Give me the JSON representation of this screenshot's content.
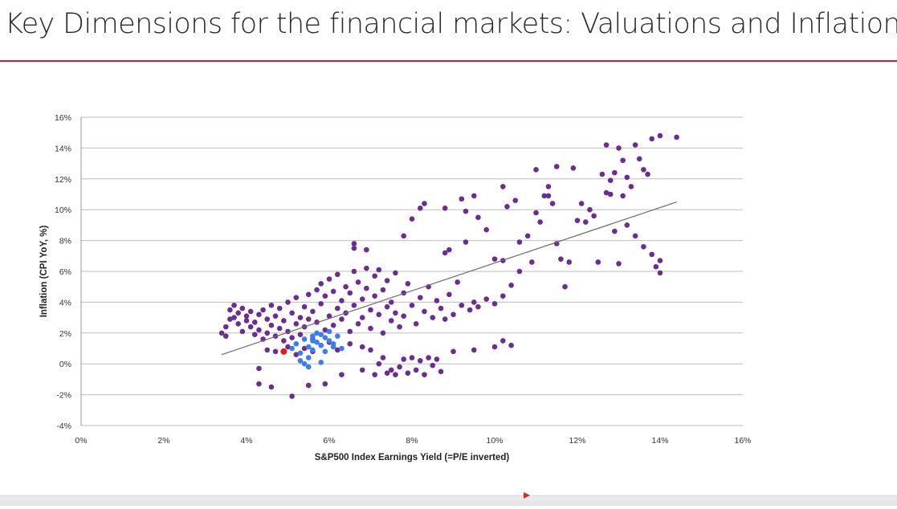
{
  "slide": {
    "title": "Key Dimensions for the financial markets: Valuations and Inflation"
  },
  "colors": {
    "accent_rule": "#c8221c",
    "historical": "#6b2d8f",
    "recent": "#3d7ee8",
    "current": "#e01b1b",
    "trendline": "#6b6b6b",
    "grid": "#bdbdbd"
  },
  "chart_data": {
    "type": "scatter",
    "title": "",
    "xlabel": "S&P500 Index Earnings Yield (=P/E inverted)",
    "ylabel": "Inflation (CPI YoY, %)",
    "xlim": [
      0,
      16
    ],
    "ylim": [
      -4,
      16
    ],
    "x_ticks": [
      "0%",
      "2%",
      "4%",
      "6%",
      "8%",
      "10%",
      "12%",
      "14%",
      "16%"
    ],
    "y_ticks": [
      "16%",
      "14%",
      "12%",
      "10%",
      "8%",
      "6%",
      "4%",
      "2%",
      "0%",
      "-2%",
      "-4%"
    ],
    "grid": "horizontal",
    "legend": "none",
    "trendline": {
      "x": [
        3.4,
        14.4
      ],
      "y": [
        0.6,
        10.5
      ]
    },
    "series": [
      {
        "color": "#6b2d8f",
        "points": [
          [
            3.4,
            2.0
          ],
          [
            3.5,
            1.8
          ],
          [
            3.5,
            2.4
          ],
          [
            3.6,
            2.9
          ],
          [
            3.6,
            3.5
          ],
          [
            3.7,
            3.0
          ],
          [
            3.7,
            3.8
          ],
          [
            3.8,
            2.6
          ],
          [
            3.8,
            3.3
          ],
          [
            3.9,
            2.1
          ],
          [
            3.9,
            3.6
          ],
          [
            4.0,
            2.8
          ],
          [
            4.0,
            3.1
          ],
          [
            4.1,
            2.4
          ],
          [
            4.1,
            3.4
          ],
          [
            4.2,
            1.9
          ],
          [
            4.2,
            2.7
          ],
          [
            4.3,
            3.2
          ],
          [
            4.3,
            2.2
          ],
          [
            4.4,
            3.5
          ],
          [
            4.4,
            1.6
          ],
          [
            4.5,
            2.9
          ],
          [
            4.5,
            2.0
          ],
          [
            4.6,
            3.8
          ],
          [
            4.6,
            2.5
          ],
          [
            4.7,
            1.8
          ],
          [
            4.7,
            3.1
          ],
          [
            4.8,
            2.3
          ],
          [
            4.8,
            3.6
          ],
          [
            4.9,
            1.5
          ],
          [
            4.9,
            2.8
          ],
          [
            5.0,
            4.0
          ],
          [
            5.0,
            2.1
          ],
          [
            5.1,
            3.3
          ],
          [
            5.1,
            1.7
          ],
          [
            5.2,
            2.6
          ],
          [
            5.2,
            4.3
          ],
          [
            5.3,
            3.0
          ],
          [
            5.3,
            1.9
          ],
          [
            5.4,
            3.7
          ],
          [
            5.4,
            2.4
          ],
          [
            5.5,
            4.5
          ],
          [
            5.5,
            2.9
          ],
          [
            5.6,
            3.4
          ],
          [
            5.6,
            1.6
          ],
          [
            5.7,
            4.8
          ],
          [
            5.7,
            2.7
          ],
          [
            5.8,
            5.2
          ],
          [
            5.8,
            3.9
          ],
          [
            5.9,
            2.2
          ],
          [
            5.9,
            4.4
          ],
          [
            6.0,
            5.5
          ],
          [
            6.0,
            3.1
          ],
          [
            6.1,
            2.5
          ],
          [
            6.1,
            4.7
          ],
          [
            6.2,
            3.6
          ],
          [
            6.2,
            5.8
          ],
          [
            6.3,
            2.9
          ],
          [
            6.3,
            4.1
          ],
          [
            6.4,
            3.3
          ],
          [
            6.4,
            5.0
          ],
          [
            6.5,
            2.1
          ],
          [
            6.5,
            4.6
          ],
          [
            6.6,
            6.0
          ],
          [
            6.6,
            3.8
          ],
          [
            6.7,
            2.6
          ],
          [
            6.7,
            5.3
          ],
          [
            6.8,
            4.2
          ],
          [
            6.8,
            3.0
          ],
          [
            6.9,
            6.2
          ],
          [
            6.9,
            4.9
          ],
          [
            7.0,
            3.5
          ],
          [
            7.0,
            2.3
          ],
          [
            7.1,
            5.7
          ],
          [
            7.1,
            4.4
          ],
          [
            7.2,
            3.2
          ],
          [
            7.2,
            6.1
          ],
          [
            7.3,
            2.0
          ],
          [
            7.3,
            4.8
          ],
          [
            7.4,
            3.7
          ],
          [
            7.4,
            5.4
          ],
          [
            7.5,
            2.8
          ],
          [
            7.5,
            4.0
          ],
          [
            7.6,
            3.3
          ],
          [
            7.6,
            5.9
          ],
          [
            7.7,
            2.4
          ],
          [
            7.8,
            4.6
          ],
          [
            7.8,
            3.1
          ],
          [
            7.9,
            5.2
          ],
          [
            8.0,
            3.8
          ],
          [
            8.1,
            2.6
          ],
          [
            8.2,
            4.3
          ],
          [
            8.3,
            3.4
          ],
          [
            8.4,
            5.0
          ],
          [
            8.5,
            3.0
          ],
          [
            8.6,
            4.1
          ],
          [
            8.7,
            3.6
          ],
          [
            8.8,
            2.9
          ],
          [
            8.9,
            4.5
          ],
          [
            9.0,
            3.2
          ],
          [
            9.1,
            5.3
          ],
          [
            9.2,
            3.8
          ],
          [
            9.4,
            3.5
          ],
          [
            9.5,
            4.0
          ],
          [
            9.6,
            3.7
          ],
          [
            9.8,
            4.2
          ],
          [
            10.0,
            3.9
          ],
          [
            10.2,
            4.4
          ],
          [
            10.4,
            5.1
          ],
          [
            10.6,
            6.0
          ],
          [
            4.5,
            0.9
          ],
          [
            4.7,
            0.8
          ],
          [
            5.0,
            1.1
          ],
          [
            5.2,
            0.6
          ],
          [
            5.4,
            1.0
          ],
          [
            5.6,
            0.8
          ],
          [
            5.8,
            1.2
          ],
          [
            6.0,
            1.4
          ],
          [
            6.2,
            0.9
          ],
          [
            6.5,
            1.3
          ],
          [
            6.8,
            1.1
          ],
          [
            7.0,
            0.9
          ],
          [
            7.3,
            0.4
          ],
          [
            7.4,
            -0.6
          ],
          [
            7.5,
            -0.4
          ],
          [
            7.6,
            -0.7
          ],
          [
            7.7,
            -0.2
          ],
          [
            7.8,
            0.3
          ],
          [
            7.9,
            -0.6
          ],
          [
            8.0,
            0.4
          ],
          [
            8.1,
            -0.4
          ],
          [
            8.2,
            0.2
          ],
          [
            8.3,
            -0.7
          ],
          [
            8.4,
            0.4
          ],
          [
            8.5,
            -0.1
          ],
          [
            8.6,
            0.3
          ],
          [
            8.7,
            -0.5
          ],
          [
            6.8,
            -0.4
          ],
          [
            7.1,
            -0.7
          ],
          [
            7.2,
            0.0
          ],
          [
            4.3,
            -1.3
          ],
          [
            4.6,
            -1.5
          ],
          [
            5.1,
            -2.1
          ],
          [
            5.5,
            -1.4
          ],
          [
            5.9,
            -1.3
          ],
          [
            6.3,
            -0.7
          ],
          [
            4.3,
            -0.3
          ],
          [
            9.0,
            0.8
          ],
          [
            9.5,
            0.9
          ],
          [
            10.0,
            1.1
          ],
          [
            10.2,
            1.5
          ],
          [
            10.4,
            1.2
          ],
          [
            6.6,
            7.5
          ],
          [
            6.6,
            7.8
          ],
          [
            6.9,
            7.4
          ],
          [
            7.8,
            8.3
          ],
          [
            8.0,
            9.4
          ],
          [
            8.2,
            10.1
          ],
          [
            8.3,
            10.4
          ],
          [
            8.8,
            10.1
          ],
          [
            9.2,
            10.7
          ],
          [
            9.3,
            9.9
          ],
          [
            9.5,
            10.9
          ],
          [
            8.8,
            7.2
          ],
          [
            8.9,
            7.4
          ],
          [
            9.3,
            7.9
          ],
          [
            9.6,
            9.5
          ],
          [
            9.8,
            8.7
          ],
          [
            10.2,
            11.5
          ],
          [
            10.3,
            10.2
          ],
          [
            10.0,
            6.8
          ],
          [
            10.2,
            6.7
          ],
          [
            10.6,
            7.9
          ],
          [
            10.8,
            8.3
          ],
          [
            10.9,
            6.6
          ],
          [
            11.0,
            9.8
          ],
          [
            11.1,
            9.2
          ],
          [
            11.2,
            10.9
          ],
          [
            11.3,
            11.5
          ],
          [
            11.4,
            10.4
          ],
          [
            11.0,
            12.6
          ],
          [
            11.5,
            12.8
          ],
          [
            11.9,
            12.7
          ],
          [
            11.5,
            7.8
          ],
          [
            11.6,
            6.8
          ],
          [
            11.8,
            6.6
          ],
          [
            12.0,
            9.3
          ],
          [
            12.1,
            10.4
          ],
          [
            12.2,
            9.2
          ],
          [
            12.4,
            9.6
          ],
          [
            12.5,
            6.6
          ],
          [
            12.7,
            11.1
          ],
          [
            12.8,
            11.9
          ],
          [
            12.9,
            12.4
          ],
          [
            13.0,
            14.0
          ],
          [
            13.1,
            13.2
          ],
          [
            12.7,
            14.2
          ],
          [
            13.2,
            12.1
          ],
          [
            13.3,
            11.5
          ],
          [
            13.4,
            14.2
          ],
          [
            13.5,
            13.3
          ],
          [
            13.6,
            12.6
          ],
          [
            13.7,
            12.3
          ],
          [
            13.4,
            8.3
          ],
          [
            13.6,
            7.6
          ],
          [
            13.8,
            7.1
          ],
          [
            13.9,
            6.3
          ],
          [
            14.0,
            6.7
          ],
          [
            14.0,
            5.9
          ],
          [
            13.8,
            14.6
          ],
          [
            14.0,
            14.8
          ],
          [
            14.4,
            14.7
          ],
          [
            11.7,
            5.0
          ],
          [
            13.0,
            6.5
          ],
          [
            12.6,
            12.3
          ],
          [
            12.3,
            10.0
          ],
          [
            10.5,
            10.6
          ],
          [
            11.3,
            10.9
          ],
          [
            12.8,
            11.0
          ],
          [
            13.2,
            9.0
          ],
          [
            12.9,
            8.6
          ],
          [
            13.1,
            10.9
          ]
        ]
      },
      {
        "color": "#3d7ee8",
        "points": [
          [
            5.1,
            1.0
          ],
          [
            5.2,
            1.3
          ],
          [
            5.3,
            0.2
          ],
          [
            5.3,
            0.7
          ],
          [
            5.4,
            1.6
          ],
          [
            5.4,
            0.0
          ],
          [
            5.5,
            1.1
          ],
          [
            5.5,
            -0.2
          ],
          [
            5.6,
            1.8
          ],
          [
            5.6,
            0.9
          ],
          [
            5.7,
            1.4
          ],
          [
            5.7,
            2.0
          ],
          [
            5.8,
            1.2
          ],
          [
            5.8,
            0.1
          ],
          [
            5.9,
            1.7
          ],
          [
            5.9,
            0.8
          ],
          [
            6.0,
            1.5
          ],
          [
            6.0,
            2.1
          ],
          [
            6.1,
            1.3
          ],
          [
            6.2,
            1.8
          ],
          [
            6.3,
            1.0
          ],
          [
            5.5,
            0.4
          ],
          [
            5.6,
            1.5
          ],
          [
            5.8,
            1.9
          ],
          [
            6.1,
            1.1
          ]
        ]
      },
      {
        "color": "#e01b1b",
        "points": [
          [
            4.9,
            0.8
          ]
        ]
      }
    ]
  }
}
